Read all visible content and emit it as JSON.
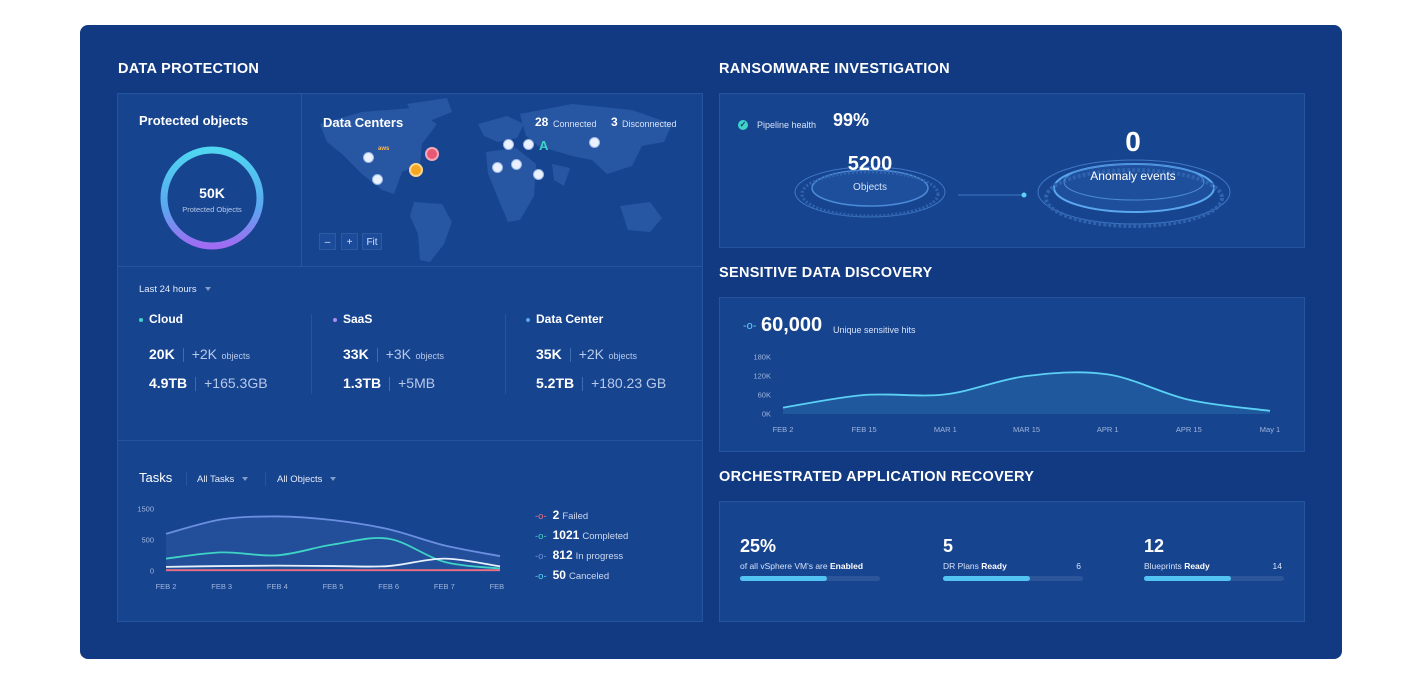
{
  "data_protection": {
    "title": "DATA PROTECTION",
    "protected": {
      "title": "Protected objects",
      "value": "50K",
      "caption": "Protected Objects"
    },
    "data_centers": {
      "title": "Data Centers",
      "connected_count": "28",
      "connected_label": "Connected",
      "disconnected_count": "3",
      "disconnected_label": "Disconnected",
      "map_controls": [
        "–",
        "+",
        "Fit"
      ],
      "markers": [
        {
          "label": "aws"
        },
        {
          "label": ""
        },
        {
          "label": ""
        },
        {
          "label": ""
        },
        {
          "label": ""
        },
        {
          "label": ""
        },
        {
          "label": ""
        },
        {
          "label": ""
        },
        {
          "label": ""
        },
        {
          "label": ""
        },
        {
          "label": ""
        },
        {
          "label": "A"
        }
      ]
    },
    "period": "Last 24 hours",
    "sources": [
      {
        "name": "Cloud",
        "color": "#3ed3c5",
        "objects": "20K",
        "objects_delta": "+2K",
        "objects_unit": "objects",
        "size": "4.9TB",
        "size_delta": "+165.3GB"
      },
      {
        "name": "SaaS",
        "color": "#a78bfa",
        "objects": "33K",
        "objects_delta": "+3K",
        "objects_unit": "objects",
        "size": "1.3TB",
        "size_delta": "+5MB"
      },
      {
        "name": "Data Center",
        "color": "#5aa7f0",
        "objects": "35K",
        "objects_delta": "+2K",
        "objects_unit": "objects",
        "size": "5.2TB",
        "size_delta": "+180.23 GB"
      }
    ],
    "tasks": {
      "title": "Tasks",
      "filter_tasks": "All Tasks",
      "filter_objects": "All Objects",
      "legend": [
        {
          "count": "2",
          "label": "Failed",
          "color": "#ef6f83"
        },
        {
          "count": "1021",
          "label": "Completed",
          "color": "#3ed3c5"
        },
        {
          "count": "812",
          "label": "In progress",
          "color": "#6b8fe0"
        },
        {
          "count": "50",
          "label": "Canceled",
          "color": "#5ad0f5"
        }
      ]
    }
  },
  "ransomware": {
    "title": "RANSOMWARE INVESTIGATION",
    "pipeline_label": "Pipeline health",
    "pipeline_value": "99%",
    "objects_value": "5200",
    "objects_label": "Objects",
    "anomaly_value": "0",
    "anomaly_label": "Anomaly events"
  },
  "sensitive": {
    "title": "SENSITIVE DATA DISCOVERY",
    "hits_value": "60,000",
    "hits_label": "Unique sensitive hits"
  },
  "orchestrated": {
    "title": "ORCHESTRATED APPLICATION RECOVERY",
    "cards": [
      {
        "value": "25%",
        "label_pre": "of all vSphere VM's are",
        "label_bold": "Enabled",
        "total": "",
        "fraction": 0.62
      },
      {
        "value": "5",
        "label_pre": "DR Plans",
        "label_bold": "Ready",
        "total": "6",
        "fraction": 0.62
      },
      {
        "value": "12",
        "label_pre": "Blueprints",
        "label_bold": "Ready",
        "total": "14",
        "fraction": 0.62
      }
    ]
  },
  "chart_data": [
    {
      "type": "area",
      "title": "Tasks",
      "x": [
        "FEB 2",
        "FEB 3",
        "FEB 4",
        "FEB 5",
        "FEB 6",
        "FEB 7",
        "FEB 8"
      ],
      "yticks": [
        "1500",
        "500",
        "0"
      ],
      "ylim": [
        0,
        1500
      ],
      "series": [
        {
          "name": "In progress",
          "color": "#6b8fe0",
          "values": [
            900,
            1250,
            1320,
            1230,
            1010,
            620,
            360
          ]
        },
        {
          "name": "Completed",
          "color": "#3ed3c5",
          "values": [
            300,
            450,
            380,
            640,
            780,
            220,
            60
          ]
        },
        {
          "name": "Canceled",
          "color": "#e6f2ff",
          "values": [
            100,
            120,
            130,
            120,
            120,
            300,
            110
          ]
        },
        {
          "name": "Failed",
          "color": "#ef6f83",
          "values": [
            20,
            20,
            20,
            20,
            20,
            20,
            20
          ]
        }
      ]
    },
    {
      "type": "area",
      "title": "",
      "x": [
        "FEB 2",
        "FEB 15",
        "MAR 1",
        "MAR 15",
        "APR 1",
        "APR 15",
        "May 1"
      ],
      "yticks": [
        "180K",
        "120K",
        "60K",
        "0K"
      ],
      "ylim": [
        0,
        180000
      ],
      "series": [
        {
          "name": "",
          "color": "#5ad0f5",
          "values": [
            20000,
            60000,
            62000,
            120000,
            125000,
            45000,
            10000
          ]
        }
      ]
    }
  ]
}
